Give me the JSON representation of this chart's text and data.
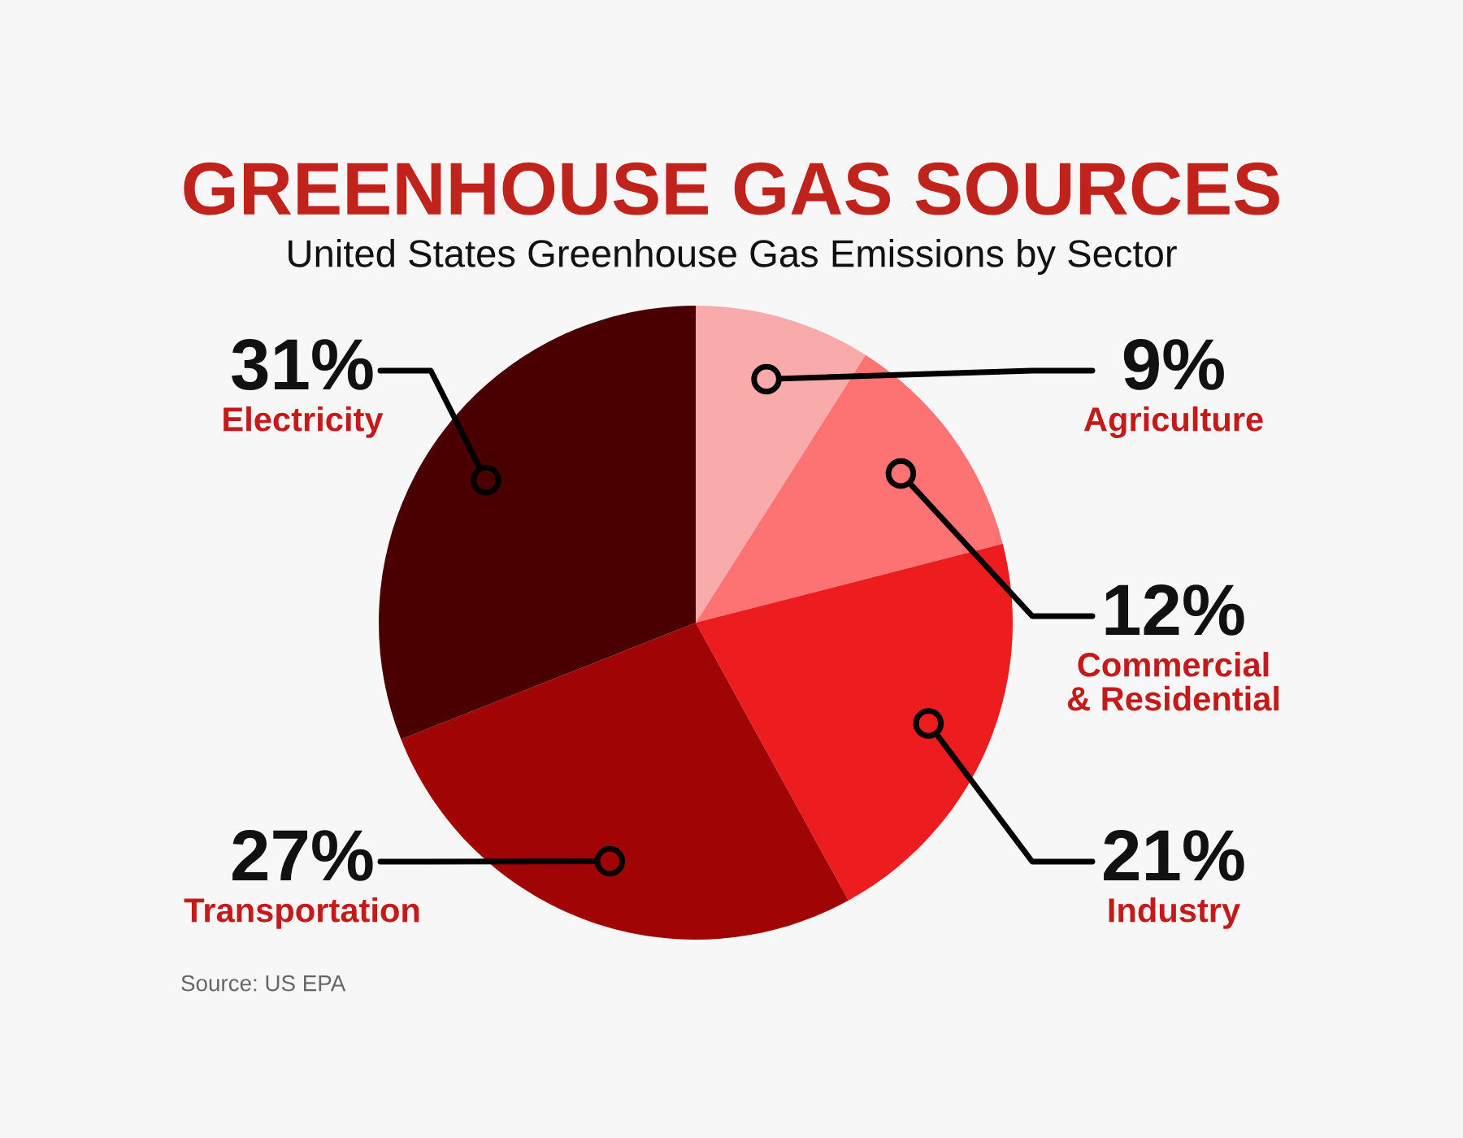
{
  "chart_data": {
    "type": "pie",
    "title": "GREENHOUSE GAS SOURCES",
    "subtitle": "United States Greenhouse Gas Emissions by Sector",
    "categories": [
      "Agriculture",
      "Commercial\n& Residential",
      "Industry",
      "Transportation",
      "Electricity"
    ],
    "values": [
      9,
      12,
      21,
      27,
      31
    ],
    "colors": [
      "#f9aaaa",
      "#fd7373",
      "#ec1c1f",
      "#a00404",
      "#4a0000"
    ],
    "value_labels": [
      "9%",
      "12%",
      "21%",
      "27%",
      "31%"
    ],
    "annotations": [
      "Source: US EPA"
    ]
  }
}
